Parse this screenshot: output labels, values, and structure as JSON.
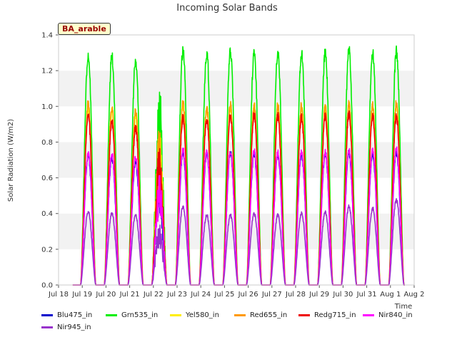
{
  "chart_data": {
    "type": "line",
    "title": "Incoming Solar Bands",
    "ylabel": "Solar Radiation (W/m2)",
    "xlabel": "Time",
    "annotation": "BA_arable",
    "ylim": [
      0,
      1.4
    ],
    "xlim": [
      0,
      15
    ],
    "yticks": [
      "0.0",
      "0.2",
      "0.4",
      "0.6",
      "0.8",
      "1.0",
      "1.2",
      "1.4"
    ],
    "xticks": [
      "Jul 18",
      "Jul 19",
      "Jul 20",
      "Jul 21",
      "Jul 22",
      "Jul 23",
      "Jul 24",
      "Jul 25",
      "Jul 26",
      "Jul 27",
      "Jul 28",
      "Jul 29",
      "Jul 30",
      "Jul 31",
      "Aug 1",
      "Aug 2"
    ],
    "grid": "horizontal bands",
    "legend_position": "bottom",
    "day_offsets": [
      1,
      2,
      3,
      4,
      5,
      6,
      7,
      8,
      9,
      10,
      11,
      12,
      13,
      14
    ],
    "series": [
      {
        "name": "Blu475_in",
        "color": "#0000cc",
        "peaks": [
          0.75,
          0.73,
          0.71,
          0.66,
          0.76,
          0.75,
          0.76,
          0.76,
          0.75,
          0.75,
          0.76,
          0.76,
          0.75,
          0.76
        ]
      },
      {
        "name": "Grn535_in",
        "color": "#00ee00",
        "peaks": [
          1.32,
          1.31,
          1.29,
          1.14,
          1.35,
          1.33,
          1.34,
          1.33,
          1.33,
          1.33,
          1.33,
          1.35,
          1.33,
          1.34
        ]
      },
      {
        "name": "Yel580_in",
        "color": "#ffee00",
        "peaks": [
          1.02,
          1.0,
          0.98,
          0.89,
          1.03,
          1.01,
          1.02,
          1.02,
          1.02,
          1.02,
          1.01,
          1.03,
          1.02,
          1.03
        ]
      },
      {
        "name": "Red655_in",
        "color": "#ff9900",
        "peaks": [
          1.04,
          1.02,
          1.0,
          0.88,
          1.04,
          1.02,
          1.03,
          1.03,
          1.03,
          1.03,
          1.02,
          1.04,
          1.03,
          1.04
        ]
      },
      {
        "name": "Redg715_in",
        "color": "#ee0000",
        "peaks": [
          0.97,
          0.94,
          0.9,
          0.77,
          0.96,
          0.95,
          0.97,
          0.98,
          0.97,
          0.96,
          0.97,
          0.98,
          0.97,
          0.97
        ]
      },
      {
        "name": "Nir840_in",
        "color": "#ff00ff",
        "peaks": [
          0.76,
          0.75,
          0.73,
          0.63,
          0.78,
          0.76,
          0.77,
          0.77,
          0.76,
          0.76,
          0.76,
          0.77,
          0.77,
          0.78
        ]
      },
      {
        "name": "Nir945_in",
        "color": "#9933cc",
        "peaks": [
          0.42,
          0.41,
          0.4,
          0.35,
          0.45,
          0.4,
          0.4,
          0.41,
          0.4,
          0.41,
          0.42,
          0.45,
          0.44,
          0.49
        ]
      }
    ]
  }
}
